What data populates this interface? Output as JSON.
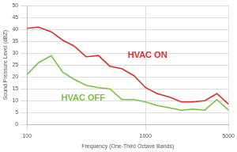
{
  "chart_data": {
    "type": "line",
    "x_label": "Frequency (One-Third Octave Bands)",
    "y_label": "Sound Pressure Level (dBZ)",
    "x": [
      100,
      125,
      160,
      200,
      250,
      315,
      400,
      500,
      630,
      800,
      1000,
      1250,
      1600,
      2000,
      2500,
      3150,
      4000,
      5000
    ],
    "series": [
      {
        "name": "HVAC ON",
        "color": "#d9302c",
        "values": [
          40.5,
          41,
          39,
          35.5,
          33,
          28.5,
          29,
          24.5,
          23.5,
          20.5,
          15.5,
          13,
          11.5,
          9.5,
          9.5,
          10,
          13,
          8.5
        ]
      },
      {
        "name": "HVAC OFF",
        "color": "#7ac143",
        "values": [
          21,
          26,
          29,
          22,
          19,
          16.5,
          15.5,
          15,
          10.5,
          10.5,
          9.5,
          8,
          7,
          6,
          6.5,
          6,
          10.5,
          6
        ]
      }
    ],
    "xlim": [
      100,
      5000
    ],
    "xticks": [
      100,
      1000,
      5000
    ],
    "ylim": [
      0,
      50
    ],
    "yticks": [
      0,
      5,
      10,
      15,
      20,
      25,
      30,
      35,
      40,
      45,
      50
    ],
    "log": "x",
    "grid": true
  }
}
